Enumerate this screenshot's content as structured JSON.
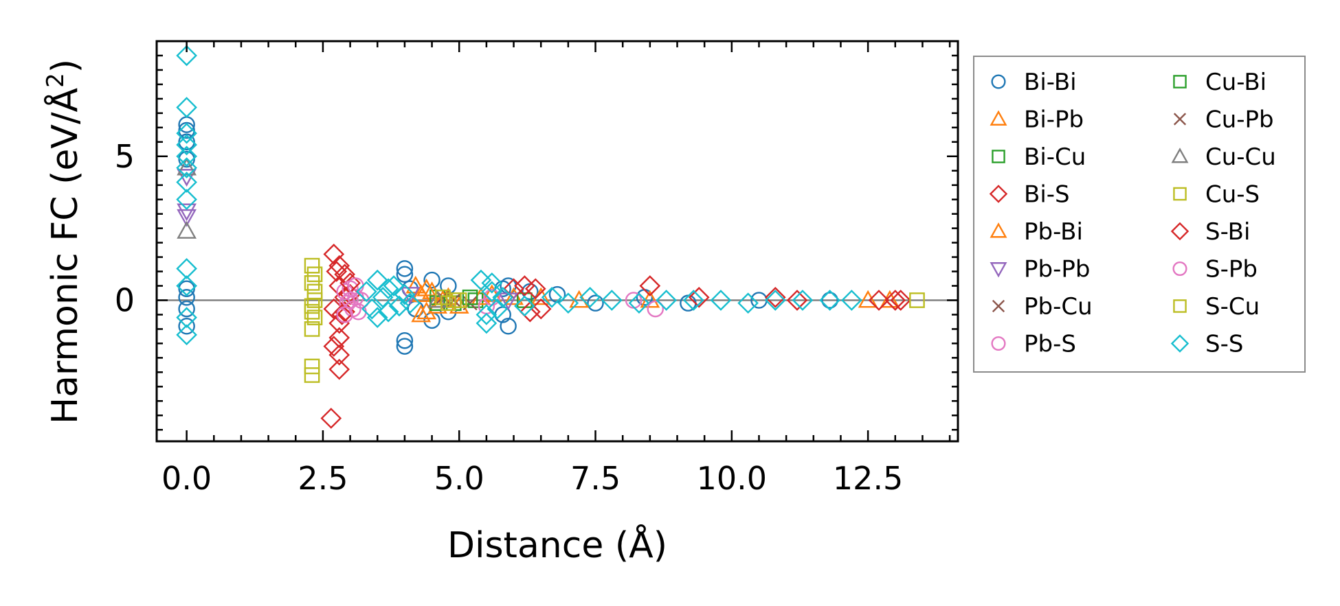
{
  "chart_data": {
    "type": "scatter",
    "xlabel": "Distance (Å)",
    "ylabel": "Harmonic FC (eV/Å²)",
    "ylabel_parts": {
      "main": "Harmonic FC (eV/Å",
      "sup": "2",
      "tail": ")"
    },
    "xlim": [
      -0.55,
      14.15
    ],
    "ylim": [
      -4.9,
      9.0
    ],
    "x_ticks": [
      0.0,
      2.5,
      5.0,
      7.5,
      10.0,
      12.5
    ],
    "x_tick_labels": [
      "0.0",
      "2.5",
      "5.0",
      "7.5",
      "10.0",
      "12.5"
    ],
    "y_ticks": [
      0,
      5
    ],
    "y_tick_labels": [
      "0",
      "5"
    ],
    "reference_line_y": 0,
    "legend_position": "right-outside",
    "series": [
      {
        "name": "Bi-Bi",
        "marker": "circle",
        "color": "#1f77b4",
        "points": [
          [
            0,
            5.9
          ],
          [
            0,
            6.1
          ],
          [
            0,
            5.5
          ],
          [
            0,
            4.9
          ],
          [
            0,
            0.4
          ],
          [
            0,
            0.1
          ],
          [
            0,
            -0.3
          ],
          [
            0,
            -0.9
          ],
          [
            4.0,
            1.1
          ],
          [
            4.0,
            0.9
          ],
          [
            4.0,
            -1.4
          ],
          [
            4.0,
            -1.6
          ],
          [
            4.1,
            0.4
          ],
          [
            4.2,
            -0.3
          ],
          [
            4.5,
            0.7
          ],
          [
            4.5,
            -0.7
          ],
          [
            4.8,
            0.5
          ],
          [
            4.8,
            -0.4
          ],
          [
            5.8,
            0.4
          ],
          [
            5.8,
            -0.5
          ],
          [
            5.9,
            -0.9
          ],
          [
            5.9,
            0.5
          ],
          [
            6.3,
            0.3
          ],
          [
            6.8,
            0.2
          ],
          [
            7.5,
            -0.1
          ],
          [
            8.4,
            0.1
          ],
          [
            9.2,
            -0.1
          ],
          [
            10.5,
            0.0
          ],
          [
            11.8,
            0.0
          ]
        ]
      },
      {
        "name": "Bi-Pb",
        "marker": "triangle-up",
        "color": "#ff7f0e",
        "points": [
          [
            4.2,
            0.5
          ],
          [
            4.3,
            0.2
          ],
          [
            4.4,
            -0.4
          ],
          [
            4.5,
            0.3
          ],
          [
            4.6,
            -0.2
          ],
          [
            4.8,
            0.1
          ],
          [
            5.0,
            -0.2
          ],
          [
            5.6,
            0.2
          ],
          [
            6.0,
            0.1
          ],
          [
            6.5,
            0.1
          ],
          [
            7.2,
            0.0
          ],
          [
            8.5,
            0.0
          ],
          [
            12.5,
            0.0
          ],
          [
            12.9,
            0.0
          ]
        ]
      },
      {
        "name": "Bi-Cu",
        "marker": "square",
        "color": "#2ca02c",
        "points": [
          [
            4.6,
            0.1
          ],
          [
            4.9,
            -0.1
          ],
          [
            5.3,
            0.0
          ],
          [
            6.2,
            0.0
          ]
        ]
      },
      {
        "name": "Bi-S",
        "marker": "diamond",
        "color": "#d62728",
        "points": [
          [
            2.7,
            1.6
          ],
          [
            2.8,
            1.2
          ],
          [
            2.9,
            0.9
          ],
          [
            2.8,
            0.5
          ],
          [
            2.9,
            0.1
          ],
          [
            2.7,
            -0.3
          ],
          [
            2.8,
            -0.8
          ],
          [
            2.7,
            -1.6
          ],
          [
            2.8,
            -1.9
          ],
          [
            2.8,
            -2.4
          ],
          [
            2.65,
            -4.1
          ],
          [
            2.9,
            -0.4
          ],
          [
            3.0,
            0.2
          ],
          [
            6.0,
            0.4
          ],
          [
            6.2,
            0.5
          ],
          [
            6.4,
            0.4
          ],
          [
            6.5,
            -0.3
          ],
          [
            8.5,
            0.5
          ],
          [
            10.8,
            0.1
          ],
          [
            12.7,
            0.0
          ],
          [
            13.0,
            0.0
          ],
          [
            13.1,
            0.0
          ]
        ]
      },
      {
        "name": "Pb-Bi",
        "marker": "triangle-up",
        "color": "#ff7f0e",
        "points": [
          [
            4.3,
            -0.5
          ],
          [
            4.4,
            0.4
          ],
          [
            4.7,
            0.0
          ],
          [
            5.4,
            0.1
          ]
        ]
      },
      {
        "name": "Pb-Pb",
        "marker": "triangle-down",
        "color": "#9467bd",
        "points": [
          [
            0,
            3.1
          ],
          [
            0,
            2.9
          ],
          [
            0,
            4.3
          ],
          [
            4.1,
            0.2
          ],
          [
            5.9,
            0.0
          ]
        ]
      },
      {
        "name": "Pb-Cu",
        "marker": "x",
        "color": "#8c564b",
        "points": [
          [
            4.7,
            0.1
          ],
          [
            5.2,
            -0.1
          ]
        ]
      },
      {
        "name": "Pb-S",
        "marker": "circle",
        "color": "#e377c2",
        "points": [
          [
            2.9,
            0.3
          ],
          [
            2.95,
            -0.1
          ],
          [
            3.0,
            0.4
          ],
          [
            3.05,
            -0.3
          ],
          [
            3.1,
            0.1
          ],
          [
            3.2,
            0.0
          ],
          [
            5.6,
            0.1
          ],
          [
            8.2,
            0.0
          ],
          [
            8.6,
            -0.3
          ]
        ]
      },
      {
        "name": "Cu-Bi",
        "marker": "square",
        "color": "#2ca02c",
        "points": [
          [
            4.6,
            -0.1
          ],
          [
            5.2,
            0.1
          ]
        ]
      },
      {
        "name": "Cu-Pb",
        "marker": "x",
        "color": "#8c564b",
        "points": [
          [
            4.9,
            0.0
          ]
        ]
      },
      {
        "name": "Cu-Cu",
        "marker": "triangle-up",
        "color": "#7f7f7f",
        "points": [
          [
            0,
            2.4
          ],
          [
            0,
            4.6
          ],
          [
            4.6,
            0.0
          ]
        ]
      },
      {
        "name": "Cu-S",
        "marker": "square",
        "color": "#bcbd22",
        "points": [
          [
            2.3,
            1.2
          ],
          [
            2.35,
            0.9
          ],
          [
            2.3,
            0.6
          ],
          [
            2.35,
            0.3
          ],
          [
            2.3,
            -0.2
          ],
          [
            2.35,
            -0.6
          ],
          [
            2.3,
            -1.0
          ],
          [
            2.3,
            -2.3
          ],
          [
            2.3,
            -2.6
          ],
          [
            4.7,
            0.1
          ],
          [
            4.9,
            0.0
          ],
          [
            13.4,
            0.0
          ]
        ]
      },
      {
        "name": "S-Bi",
        "marker": "diamond",
        "color": "#d62728",
        "points": [
          [
            2.75,
            1.0
          ],
          [
            2.85,
            -0.5
          ],
          [
            2.8,
            -1.3
          ],
          [
            3.0,
            0.6
          ],
          [
            6.3,
            -0.4
          ],
          [
            9.4,
            0.1
          ],
          [
            11.2,
            0.0
          ]
        ]
      },
      {
        "name": "S-Pb",
        "marker": "circle",
        "color": "#e377c2",
        "points": [
          [
            2.9,
            -0.5
          ],
          [
            3.0,
            0.0
          ],
          [
            3.1,
            0.5
          ],
          [
            3.15,
            -0.4
          ],
          [
            5.5,
            -0.2
          ]
        ]
      },
      {
        "name": "S-Cu",
        "marker": "square",
        "color": "#bcbd22",
        "points": [
          [
            2.35,
            0.0
          ],
          [
            2.3,
            -0.4
          ],
          [
            4.8,
            -0.1
          ],
          [
            5.0,
            0.0
          ]
        ]
      },
      {
        "name": "S-S",
        "marker": "diamond",
        "color": "#17becf",
        "points": [
          [
            0,
            8.5
          ],
          [
            0,
            6.7
          ],
          [
            0,
            5.8
          ],
          [
            0,
            5.4
          ],
          [
            0,
            5.0
          ],
          [
            0,
            4.6
          ],
          [
            0,
            4.1
          ],
          [
            0,
            3.5
          ],
          [
            0,
            1.1
          ],
          [
            0,
            0.5
          ],
          [
            0,
            -0.6
          ],
          [
            0,
            -1.2
          ],
          [
            3.3,
            0.3
          ],
          [
            3.4,
            -0.3
          ],
          [
            3.5,
            0.7
          ],
          [
            3.6,
            0.1
          ],
          [
            3.7,
            -0.4
          ],
          [
            3.8,
            0.5
          ],
          [
            3.9,
            -0.2
          ],
          [
            4.0,
            0.2
          ],
          [
            4.1,
            -0.1
          ],
          [
            3.5,
            -0.6
          ],
          [
            3.7,
            0.4
          ],
          [
            5.4,
            0.7
          ],
          [
            5.5,
            -0.8
          ],
          [
            5.6,
            0.3
          ],
          [
            5.7,
            -0.3
          ],
          [
            5.6,
            0.6
          ],
          [
            5.5,
            -0.5
          ],
          [
            5.8,
            0.1
          ],
          [
            6.2,
            -0.2
          ],
          [
            6.7,
            0.1
          ],
          [
            7.0,
            -0.1
          ],
          [
            7.4,
            0.1
          ],
          [
            7.8,
            0.0
          ],
          [
            8.3,
            -0.1
          ],
          [
            8.8,
            0.0
          ],
          [
            9.3,
            0.0
          ],
          [
            9.8,
            0.0
          ],
          [
            10.3,
            -0.1
          ],
          [
            10.8,
            0.0
          ],
          [
            11.3,
            0.0
          ],
          [
            11.8,
            0.0
          ],
          [
            12.2,
            0.0
          ]
        ]
      }
    ]
  }
}
